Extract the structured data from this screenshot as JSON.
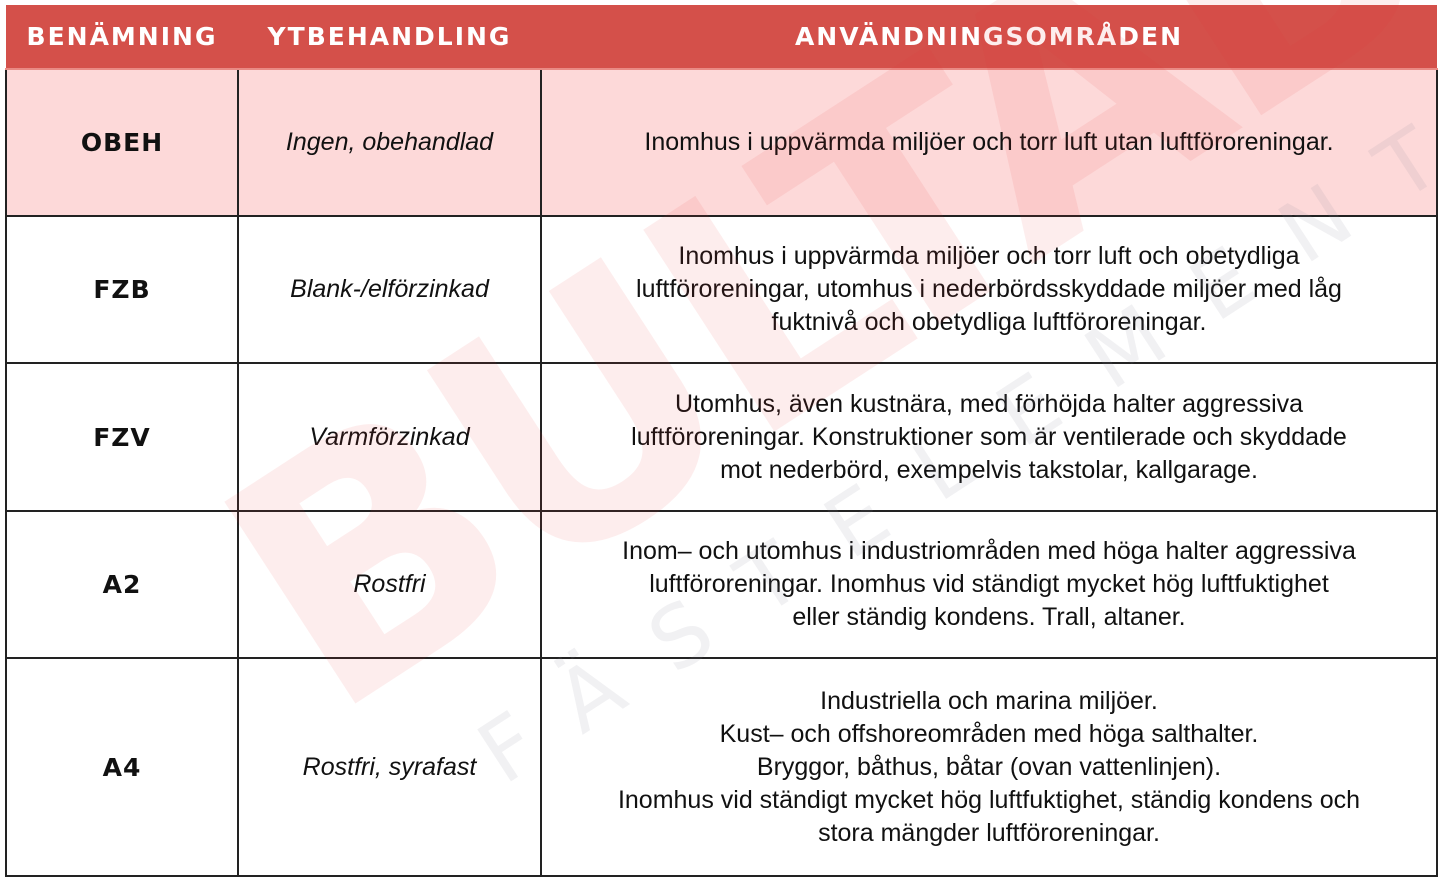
{
  "header": {
    "col_name": "BENÄMNING",
    "col_surface": "YTBEHANDLING",
    "col_usage": "ANVÄNDNINGSOMRÅDEN"
  },
  "colors": {
    "header_bg": "#d4504a",
    "highlight_row_bg": "#fdd9d9"
  },
  "watermark": {
    "brand": "BULTAB",
    "tagline": "FÄSTELEMENT"
  },
  "rows": [
    {
      "name": "OBEH",
      "surface": "Ingen, obehandlad",
      "usage": [
        "Inomhus i uppvärmda miljöer och torr luft utan luftföroreningar."
      ]
    },
    {
      "name": "FZB",
      "surface": "Blank-/elförzinkad",
      "usage": [
        "Inomhus i uppvärmda miljöer och torr luft och obetydliga",
        "luftföroreningar, utomhus i nederbördsskyddade miljöer med låg",
        "fuktnivå och obetydliga luftföroreningar."
      ]
    },
    {
      "name": "FZV",
      "surface": "Varmförzinkad",
      "usage": [
        "Utomhus, även kustnära, med förhöjda halter aggressiva",
        "luftföroreningar. Konstruktioner som är ventilerade och skyddade",
        "mot nederbörd, exempelvis takstolar, kallgarage."
      ]
    },
    {
      "name": "A2",
      "surface": "Rostfri",
      "usage": [
        "Inom– och utomhus i industriområden med höga halter aggressiva",
        "luftföroreningar. Inomhus vid ständigt mycket hög luftfuktighet",
        "eller ständig kondens. Trall, altaner."
      ]
    },
    {
      "name": "A4",
      "surface": "Rostfri, syrafast",
      "usage": [
        "Industriella och marina miljöer.",
        "Kust– och offshoreområden med höga salthalter.",
        "Bryggor, båthus, båtar (ovan vattenlinjen).",
        "Inomhus vid ständigt mycket hög luftfuktighet, ständig kondens och",
        "stora mängder luftföroreningar."
      ]
    }
  ]
}
